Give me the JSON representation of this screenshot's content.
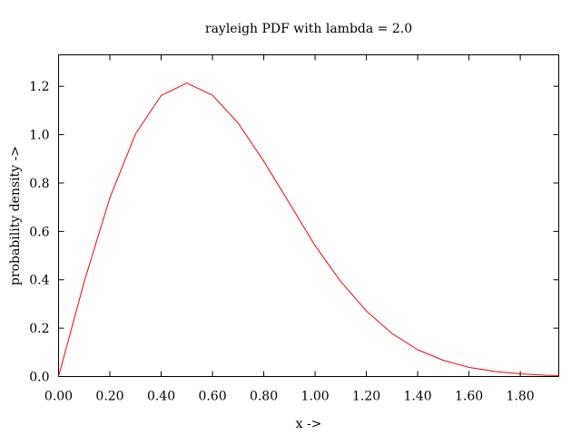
{
  "chart_data": {
    "type": "line",
    "title": "rayleigh PDF with lambda = 2.0",
    "xlabel": "x ->",
    "ylabel": "probability density ->",
    "xlim": [
      0,
      1.95
    ],
    "ylim": [
      0,
      1.33
    ],
    "xticks": [
      0,
      0.2,
      0.4,
      0.6,
      0.8,
      1.0,
      1.2,
      1.4,
      1.6,
      1.8
    ],
    "xtick_labels": [
      "0.00",
      "0.20",
      "0.40",
      "0.60",
      "0.80",
      "1.00",
      "1.20",
      "1.40",
      "1.60",
      "1.80"
    ],
    "yticks": [
      0,
      0.2,
      0.4,
      0.6,
      0.8,
      1.0,
      1.2
    ],
    "ytick_labels": [
      "0.0",
      "0.2",
      "0.4",
      "0.6",
      "0.8",
      "1.0",
      "1.2"
    ],
    "grid": false,
    "line_color": "#ff0000",
    "series": [
      {
        "x": [
          0,
          0.1,
          0.2,
          0.3,
          0.4,
          0.5,
          0.6,
          0.7,
          0.8,
          0.9,
          1.0,
          1.1,
          1.2,
          1.3,
          1.4,
          1.5,
          1.6,
          1.7,
          1.8,
          1.9,
          1.95
        ],
        "y": [
          0,
          0.392,
          0.739,
          1.003,
          1.162,
          1.213,
          1.163,
          1.048,
          0.89,
          0.717,
          0.541,
          0.393,
          0.271,
          0.178,
          0.111,
          0.067,
          0.038,
          0.021,
          0.011,
          0.005,
          0.004
        ]
      }
    ]
  }
}
